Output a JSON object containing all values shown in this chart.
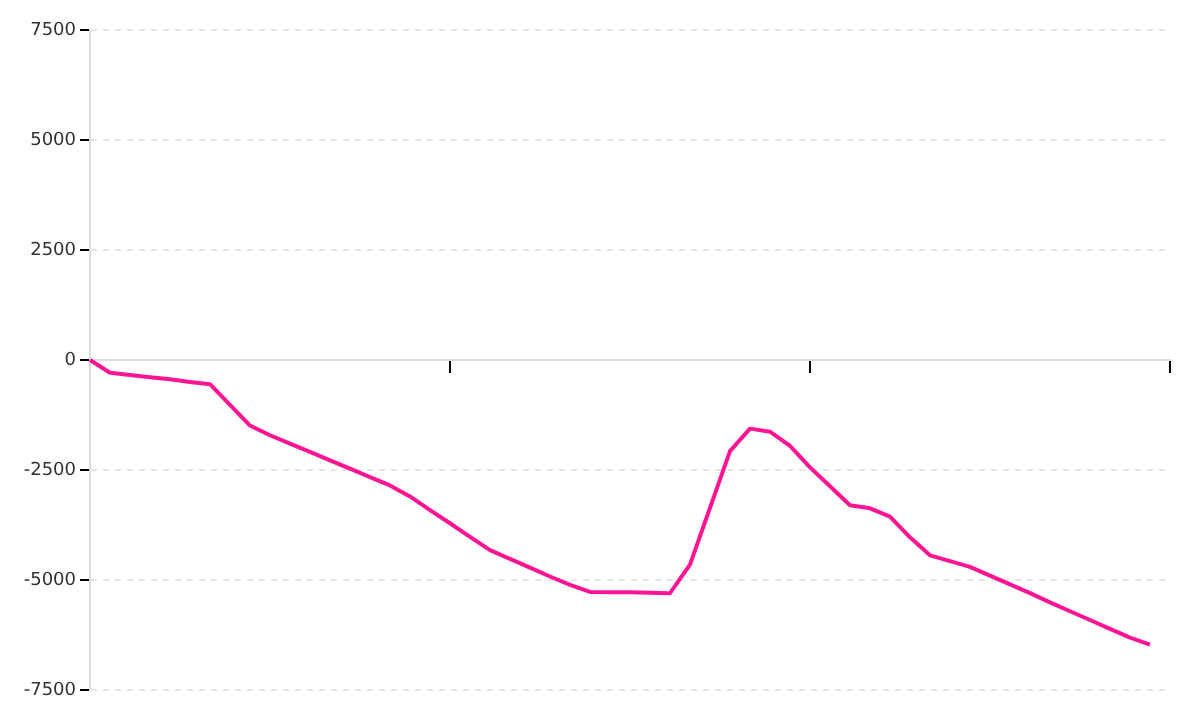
{
  "chart_data": {
    "type": "line",
    "categories": [
      null,
      null,
      null,
      null,
      null,
      null,
      null,
      null,
      null,
      null,
      null,
      null,
      null,
      null,
      null,
      null,
      null,
      null,
      null,
      null,
      null,
      null,
      null,
      null,
      null,
      null,
      null,
      null,
      null,
      null,
      null,
      null,
      null,
      null,
      null,
      null,
      null,
      null,
      null,
      null,
      null,
      null,
      null,
      null,
      null,
      null,
      null,
      null,
      null,
      null,
      null,
      null,
      null,
      null,
      null
    ],
    "series": [
      {
        "color": "#ff1493",
        "values": [
          0,
          -290,
          -340,
          -390,
          -440,
          -500,
          -550,
          -1020,
          -1490,
          -1710,
          -1900,
          -2090,
          -2280,
          -2470,
          -2660,
          -2850,
          -3100,
          -3410,
          -3710,
          -4020,
          -4320,
          -4520,
          -4720,
          -4920,
          -5110,
          -5270,
          -5280,
          -5280,
          -5290,
          -5300,
          -4650,
          -3360,
          -2070,
          -1560,
          -1630,
          -1950,
          -2440,
          -2870,
          -3300,
          -3370,
          -3560,
          -4030,
          -4440,
          -4570,
          -4700,
          -4900,
          -5100,
          -5300,
          -5510,
          -5710,
          -5910,
          -6110,
          -6310,
          -6470,
          null
        ]
      }
    ],
    "ylim": [
      -7500,
      7500
    ],
    "yticks": [
      -7500,
      -5000,
      -2500,
      0,
      2500,
      5000,
      7500
    ],
    "tick_labels": "y",
    "grid": "y",
    "legend": false,
    "marker": "none",
    "line_style": "solid"
  }
}
